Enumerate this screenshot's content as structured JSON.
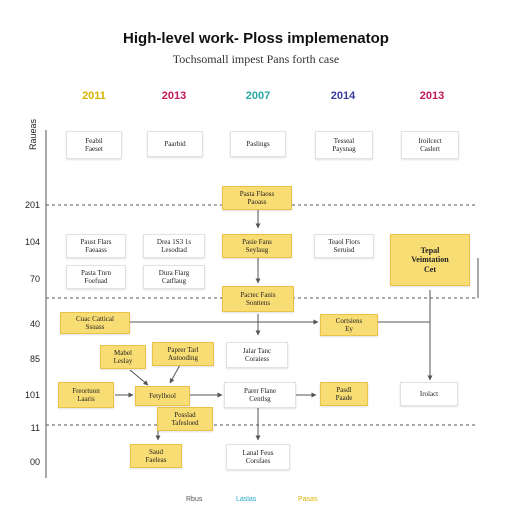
{
  "title": "High-level work- Ploss implemenatop",
  "subtitle": "Tochsomall impest Pans forth case",
  "axis_title": "Raueas",
  "years": [
    {
      "label": "2011",
      "color": "#d9b300"
    },
    {
      "label": "2013",
      "color": "#c2185b"
    },
    {
      "label": "2007",
      "color": "#2aa6a6"
    },
    {
      "label": "2014",
      "color": "#3a3aa0"
    },
    {
      "label": "2013",
      "color": "#c2185b"
    }
  ],
  "row_labels": [
    "201",
    "104",
    "70",
    "40",
    "85",
    "101",
    "11",
    "00"
  ],
  "nodes": {
    "w1": "Feabil\nFaeset",
    "w2": "Paarbid",
    "w3": "Paslings",
    "w4": "Tesseal\nPaysnag",
    "w5": "Iroilcect\nCaslert",
    "y_top": "Pasta Flaoss\nPaoass",
    "w_left1": "Paust Flars\nFaeaass",
    "w_left2": "Pasta Tnrn\nFoefuad",
    "w_mid1": "Drea 1S3 1s\nLesodtad",
    "w_mid2": "Dura Flarg\nCatflaug",
    "y_mid": "Pasie Fans\nSeylaug",
    "w_right1": "Teaol Flors\nSeruisd",
    "y_big": "Tepal\nVeimtation\nCet",
    "y_center": "Pactec Fanis\nSonttens",
    "y_left_wide": "Cuac Cattical\nSsuass",
    "y_right_mid": "Cortsiens\nEy",
    "y_a": "Mabel\nLeslay",
    "y_b": "Paprer Tarl\nAutooding",
    "w_c": "Jalar Tanc\nCoraiess",
    "y_c": "Freortuon\nLaaris",
    "y_d": "Fetylhool",
    "w_e": "Parer Flane\nCentlsg",
    "y_e": "Pasdl\nPaade",
    "w_f": "Irolact",
    "y_f": "Posslad\nTafesloed",
    "y_g": "Saud\nFaeleas",
    "w_g": "Lanal Feus\nCorsfaes"
  },
  "footer": [
    {
      "text": "Rbus",
      "color": "#555555"
    },
    {
      "text": "Laslas",
      "color": "#2aa6c6"
    },
    {
      "text": "Pasas",
      "color": "#d9b300"
    }
  ]
}
